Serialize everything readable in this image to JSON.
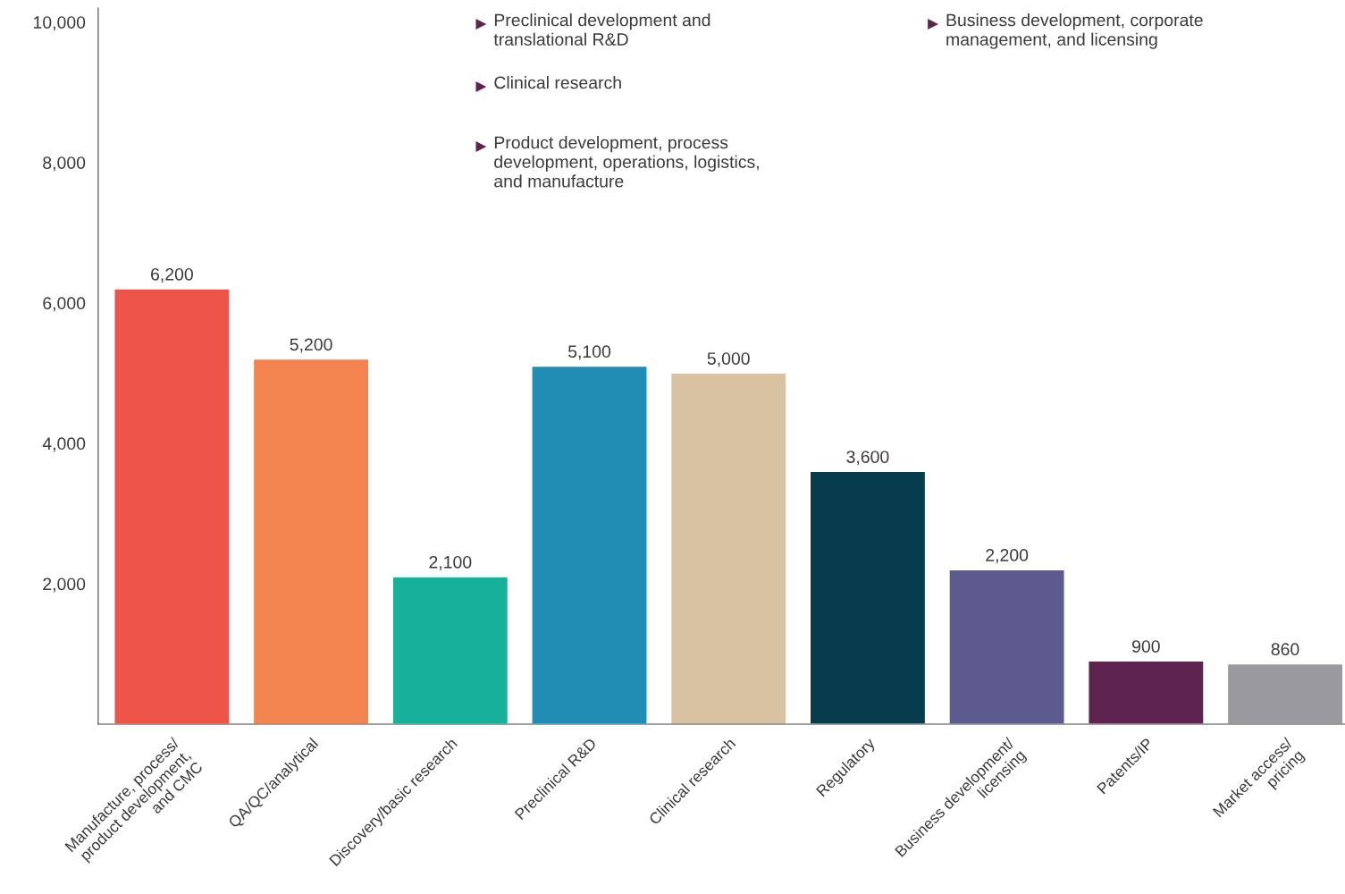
{
  "chart_data": {
    "type": "bar",
    "categories": [
      "Manufacture, process/\nproduct development,\nand CMC",
      "QA/QC/analytical",
      "Discovery/basic research",
      "Preclinical R&D",
      "Clinical research",
      "Regulatory",
      "Business development/\nlicensing",
      "Patents/IP",
      "Market access/\npricing"
    ],
    "values": [
      6200,
      5200,
      2100,
      5100,
      5000,
      3600,
      2200,
      900,
      860
    ],
    "colors": [
      "#ef5449",
      "#f3834f",
      "#17b09b",
      "#218db5",
      "#d9c2a1",
      "#073c4c",
      "#5c5a8f",
      "#5f2350",
      "#9a999d"
    ],
    "ylim": [
      0,
      10200
    ],
    "yticks": [
      {
        "value": 2000,
        "label": "2,000"
      },
      {
        "value": 4000,
        "label": "4,000"
      },
      {
        "value": 6000,
        "label": "6,000"
      },
      {
        "value": 8000,
        "label": "8,000"
      },
      {
        "value": 10000,
        "label": "10,000"
      }
    ],
    "value_labels": [
      "6,200",
      "5,200",
      "2,100",
      "5,100",
      "5,000",
      "3,600",
      "2,200",
      "900",
      "860"
    ],
    "grid": false,
    "annotations": [
      "Preclinical development and\ntranslational R&D",
      "Clinical research",
      "Product development, process\ndevelopment, operations, logistics,\nand manufacture",
      "Business development, corporate\nmanagement, and licensing"
    ]
  }
}
